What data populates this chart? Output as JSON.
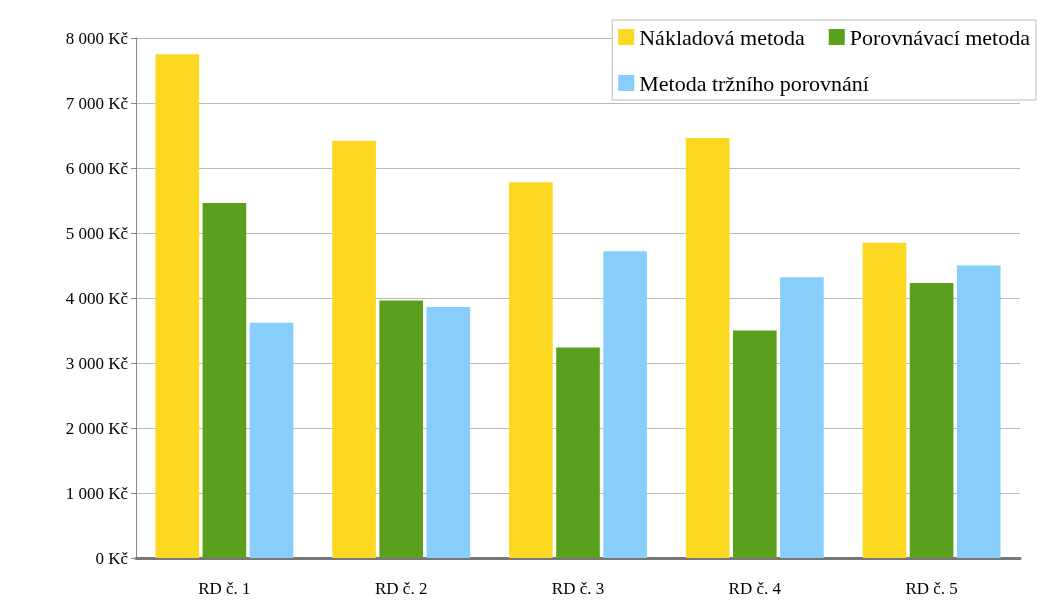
{
  "chart_data": {
    "type": "bar",
    "categories": [
      "RD č. 1",
      "RD č. 2",
      "RD č. 3",
      "RD č. 4",
      "RD č. 5"
    ],
    "series": [
      {
        "name": "Nákladová metoda",
        "color": "#fdd821",
        "values": [
          7750,
          6420,
          5780,
          6460,
          4850
        ]
      },
      {
        "name": "Porovnávací metoda",
        "color": "#5aa01e",
        "values": [
          5460,
          3960,
          3240,
          3500,
          4230
        ]
      },
      {
        "name": "Metoda tržního porovnání",
        "color": "#87cefa",
        "values": [
          3620,
          3860,
          4720,
          4320,
          4500
        ]
      }
    ],
    "ylim": [
      0,
      8000
    ],
    "yticks": [
      {
        "value": 0,
        "label": "0 Kč"
      },
      {
        "value": 1000,
        "label": "1 000 Kč"
      },
      {
        "value": 2000,
        "label": "2 000 Kč"
      },
      {
        "value": 3000,
        "label": "3 000 Kč"
      },
      {
        "value": 4000,
        "label": "4 000 Kč"
      },
      {
        "value": 5000,
        "label": "5 000 Kč"
      },
      {
        "value": 6000,
        "label": "6 000 Kč"
      },
      {
        "value": 7000,
        "label": "7 000 Kč"
      },
      {
        "value": 8000,
        "label": "8 000 Kč"
      }
    ],
    "grid": "y",
    "legend": "top right"
  }
}
